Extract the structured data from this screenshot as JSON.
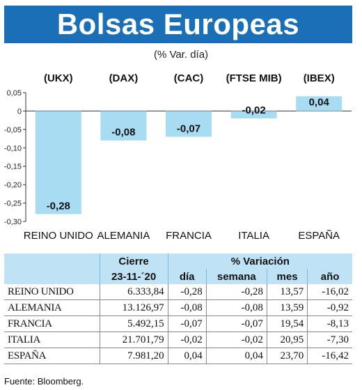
{
  "title": "Bolsas Europeas",
  "subtitle": "(% Var. día)",
  "chart_data": {
    "type": "bar",
    "index_labels": [
      "(UKX)",
      "(DAX)",
      "(CAC)",
      "(FTSE MIB)",
      "(IBEX)"
    ],
    "categories": [
      "REINO UNIDO",
      "ALEMANIA",
      "FRANCIA",
      "ITALIA",
      "ESPAÑA"
    ],
    "values": [
      -0.28,
      -0.08,
      -0.07,
      -0.02,
      0.04
    ],
    "value_labels": [
      "-0,28",
      "-0,08",
      "-0,07",
      "-0,02",
      "0,04"
    ],
    "ylim": [
      -0.3,
      0.05
    ],
    "yticks": [
      0.05,
      0,
      -0.05,
      -0.1,
      -0.15,
      -0.2,
      -0.25,
      -0.3
    ],
    "ytick_labels": [
      "0,05",
      "0",
      "-0,05",
      "-0,10",
      "-0,15",
      "-0,20",
      "-0,25",
      "-0,30"
    ],
    "bar_color": "#a8dcf3"
  },
  "table": {
    "header_cierre": "Cierre",
    "header_date": "23-11-´20",
    "header_variacion": "% Variación",
    "col_dia": "día",
    "col_semana": "semana",
    "col_mes": "mes",
    "col_ano": "año",
    "rows": [
      {
        "name": "REINO UNIDO",
        "cierre": "6.333,84",
        "dia": "-0,28",
        "semana": "-0,28",
        "mes": "13,57",
        "ano": "-16,02"
      },
      {
        "name": "ALEMANIA",
        "cierre": "13.126,97",
        "dia": "-0,08",
        "semana": "-0,08",
        "mes": "13,59",
        "ano": "-0,92"
      },
      {
        "name": "FRANCIA",
        "cierre": "5.492,15",
        "dia": "-0,07",
        "semana": "-0,07",
        "mes": "19,54",
        "ano": "-8,13"
      },
      {
        "name": "ITALIA",
        "cierre": "21.701,79",
        "dia": "-0,02",
        "semana": "-0,02",
        "mes": "20,95",
        "ano": "-7,30"
      },
      {
        "name": "ESPAÑA",
        "cierre": "7.981,20",
        "dia": "0,04",
        "semana": "0,04",
        "mes": "23,70",
        "ano": "-16,42"
      }
    ]
  },
  "source": "Fuente: Bloomberg."
}
